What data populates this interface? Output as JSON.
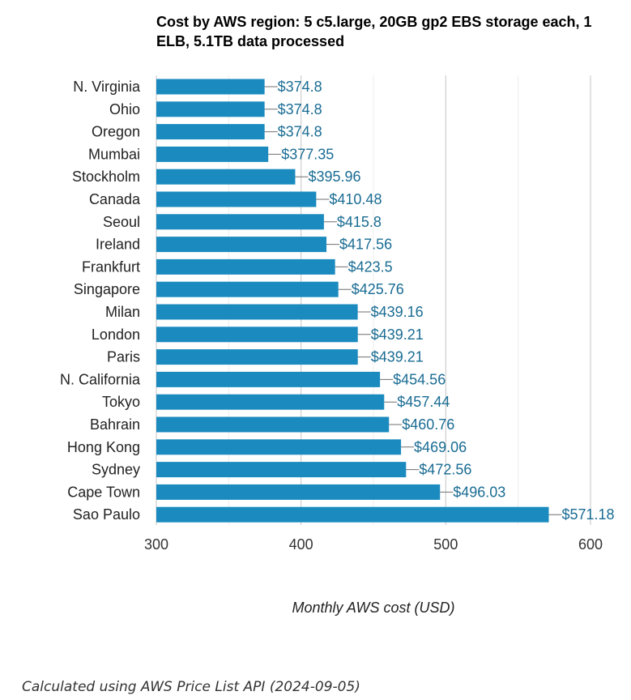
{
  "chart_data": {
    "type": "bar",
    "orientation": "horizontal",
    "title": "Cost by AWS region: 5 c5.large, 20GB gp2 EBS storage each, 1 ELB, 5.1TB data processed",
    "xlabel": "Monthly AWS cost (USD)",
    "ylabel": "",
    "xlim": [
      300,
      600
    ],
    "xticks": [
      300,
      400,
      500,
      600
    ],
    "grid": true,
    "bar_color": "#1b8bbf",
    "label_color": "#1a6c93",
    "value_prefix": "$",
    "categories": [
      "N. Virginia",
      "Ohio",
      "Oregon",
      "Mumbai",
      "Stockholm",
      "Canada",
      "Seoul",
      "Ireland",
      "Frankfurt",
      "Singapore",
      "Milan",
      "London",
      "Paris",
      "N. California",
      "Tokyo",
      "Bahrain",
      "Hong Kong",
      "Sydney",
      "Cape Town",
      "Sao Paulo"
    ],
    "values": [
      374.8,
      374.8,
      374.8,
      377.35,
      395.96,
      410.48,
      415.8,
      417.56,
      423.5,
      425.76,
      439.16,
      439.21,
      439.21,
      454.56,
      457.44,
      460.76,
      469.06,
      472.56,
      496.03,
      571.18
    ],
    "value_labels": [
      "$374.8",
      "$374.8",
      "$374.8",
      "$377.35",
      "$395.96",
      "$410.48",
      "$415.8",
      "$417.56",
      "$423.5",
      "$425.76",
      "$439.16",
      "$439.21",
      "$439.21",
      "$454.56",
      "$457.44",
      "$460.76",
      "$469.06",
      "$472.56",
      "$496.03",
      "$571.18"
    ]
  },
  "footer": {
    "source_note": "Calculated using AWS Price List API (2024-09-05)"
  }
}
